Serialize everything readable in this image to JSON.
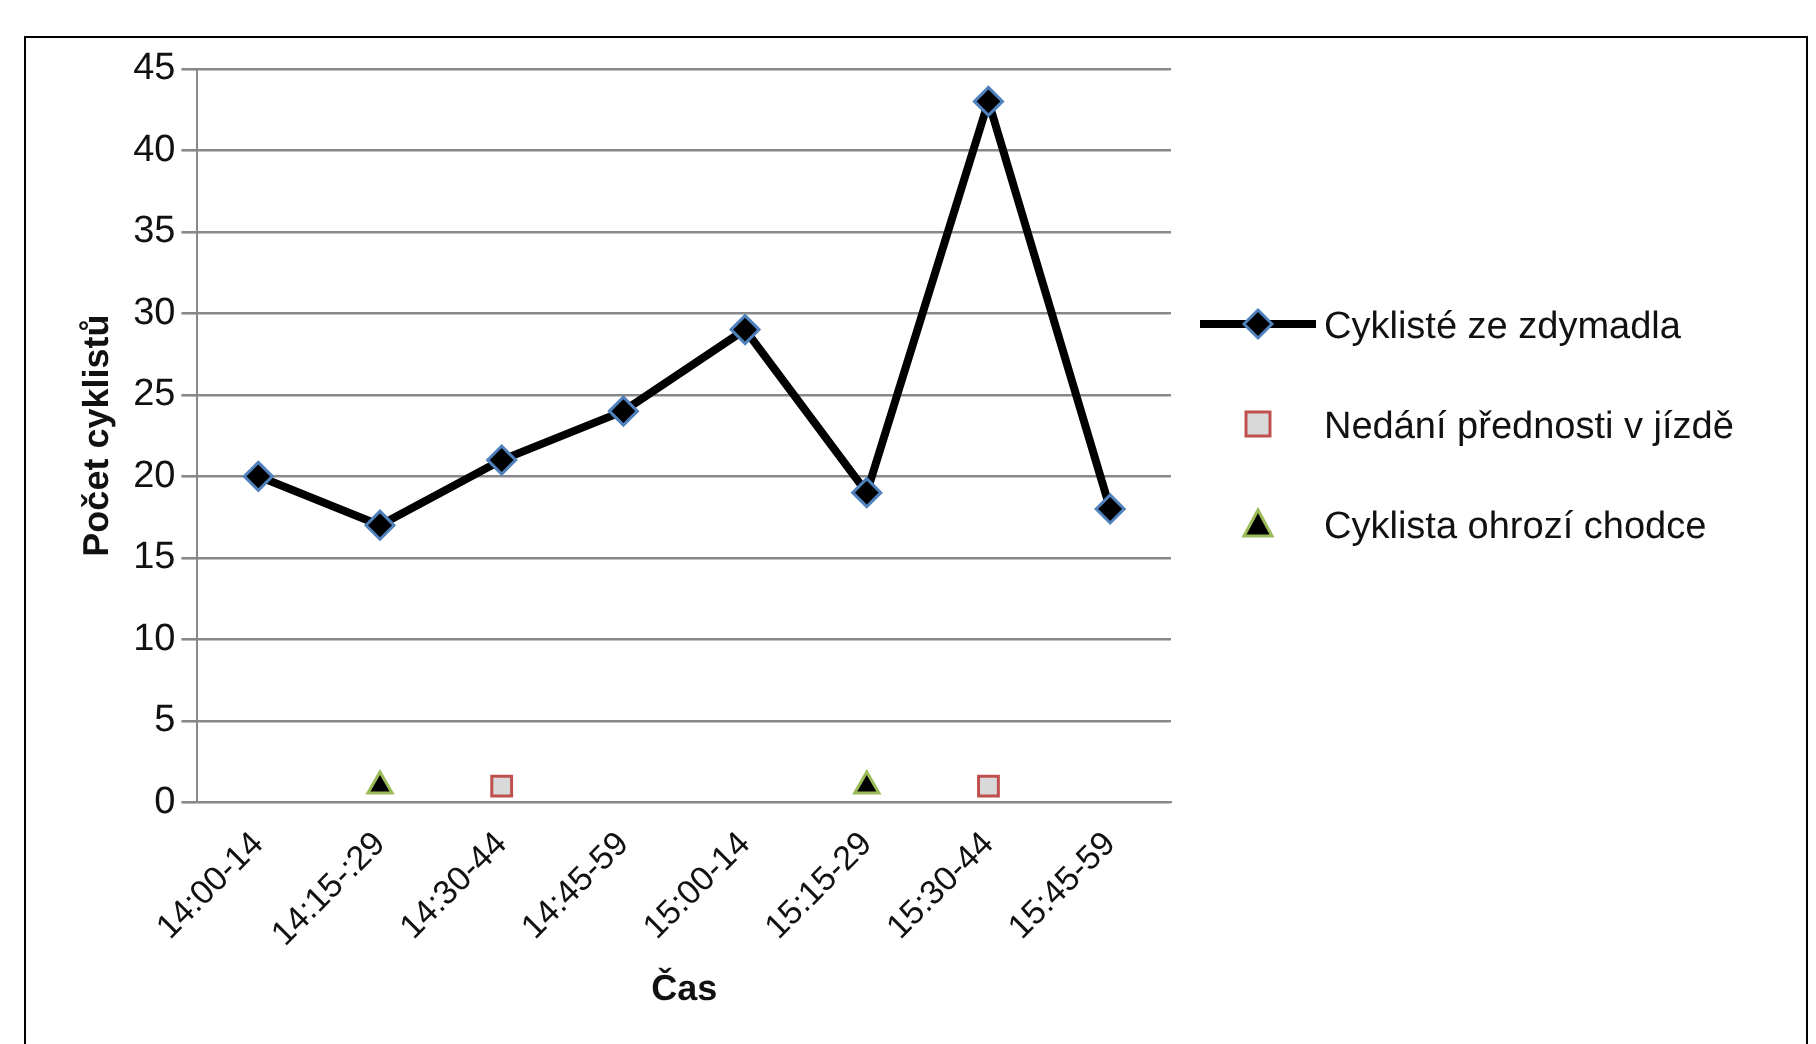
{
  "chart_data": {
    "type": "line",
    "xlabel": "Čas",
    "ylabel": "Počet cyklistů",
    "categories": [
      "14:00-14",
      "14:15-:29",
      "14:30-44",
      "14:45-59",
      "15:00-14",
      "15:15-29",
      "15:30-44",
      "15:45-59"
    ],
    "series": [
      {
        "name": "Cyklisté ze zdymadla",
        "type": "line",
        "color": "#000000",
        "marker": "diamond",
        "values": [
          20,
          17,
          21,
          24,
          29,
          19,
          43,
          18
        ]
      },
      {
        "name": "Nedání přednosti v jízdě",
        "type": "scatter",
        "color": "#d9d9d9",
        "marker": "square",
        "x": [
          "14:30-44",
          "15:30-44"
        ],
        "values": [
          1,
          1
        ]
      },
      {
        "name": "Cyklista ohrozí chodce",
        "type": "scatter",
        "color": "#000000",
        "marker": "triangle",
        "x": [
          "14:15-:29",
          "15:15-29"
        ],
        "values": [
          1,
          1
        ]
      }
    ],
    "ylim": [
      0,
      45
    ],
    "yticks": [
      0,
      5,
      10,
      15,
      20,
      25,
      30,
      35,
      40,
      45
    ],
    "grid": "y",
    "legend": "right"
  }
}
